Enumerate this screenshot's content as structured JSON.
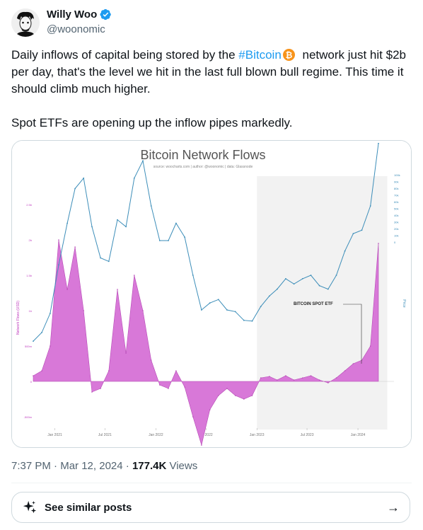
{
  "author": {
    "name": "Willy Woo",
    "handle": "@woonomic",
    "verified": true
  },
  "tweet": {
    "text_before": "Daily inflows of capital being stored by the ",
    "hashtag": "#Bitcoin",
    "emoji": "bitcoin-coin-emoji",
    "text_after": " network just hit $2b per day, that's the level we hit in the last full blown bull regime. This time it should climb much higher.",
    "paragraph2": "Spot ETFs are opening up the inflow pipes markedly."
  },
  "meta": {
    "time": "7:37 PM",
    "sep1": " · ",
    "date": "Mar 12, 2024",
    "sep2": " · ",
    "views_count": "177.4K",
    "views_label": " Views"
  },
  "similar": {
    "label": "See similar posts",
    "icon": "sparkle-icon",
    "arrow": "→"
  },
  "colors": {
    "accent": "#1d9bf0",
    "price_line": "#3d8eb9",
    "flow_fill": "#d878d8",
    "flow_stroke": "#b64bb6",
    "shade": "#f2f2f2"
  },
  "chart_data": {
    "type": "area",
    "title": "Bitcoin Network Flows",
    "subtitle": "source: woocharts.com | author: @woonomic | data: Glassnode",
    "ylabel_left": "Network Flows (USD)",
    "ylabel_right": "Price",
    "x_ticks": [
      "Jan 2021",
      "Jul 2021",
      "Jan 2022",
      "Jul 2022",
      "Jan 2023",
      "Jul 2023",
      "Jan 2024"
    ],
    "y_left_ticks": [
      "2.5b",
      "2b",
      "1.5b",
      "1b",
      "500m",
      "0",
      "-500m"
    ],
    "y_right_ticks": [
      "100k",
      "90k",
      "80k",
      "70k",
      "60k",
      "50k",
      "40k",
      "30k",
      "20k",
      "10k",
      "0"
    ],
    "shaded_range": [
      "Jan 2023",
      "Mar 2024"
    ],
    "annotations": [
      "BITCOIN SPOT ETF"
    ],
    "series": [
      {
        "name": "Price",
        "x": [
          "2020-10",
          "2020-11",
          "2020-12",
          "2021-01",
          "2021-02",
          "2021-03",
          "2021-04",
          "2021-05",
          "2021-06",
          "2021-07",
          "2021-08",
          "2021-09",
          "2021-10",
          "2021-11",
          "2021-12",
          "2022-01",
          "2022-02",
          "2022-03",
          "2022-04",
          "2022-05",
          "2022-06",
          "2022-07",
          "2022-08",
          "2022-09",
          "2022-10",
          "2022-11",
          "2022-12",
          "2023-01",
          "2023-02",
          "2023-03",
          "2023-04",
          "2023-05",
          "2023-06",
          "2023-07",
          "2023-08",
          "2023-09",
          "2023-10",
          "2023-11",
          "2023-12",
          "2024-01",
          "2024-02",
          "2024-03"
        ],
        "values": [
          11000,
          13500,
          19000,
          33000,
          45000,
          55000,
          58000,
          44000,
          35000,
          34000,
          46000,
          44000,
          58000,
          63000,
          50000,
          40000,
          40000,
          45000,
          41000,
          30000,
          20000,
          22000,
          23000,
          20000,
          19500,
          17000,
          16800,
          21000,
          24000,
          26000,
          29000,
          27500,
          29000,
          30000,
          27000,
          26000,
          30000,
          37000,
          42000,
          43000,
          50000,
          68000
        ]
      },
      {
        "name": "Network Flows",
        "x": [
          "2020-10",
          "2020-11",
          "2020-12",
          "2021-01",
          "2021-02",
          "2021-03",
          "2021-04",
          "2021-05",
          "2021-06",
          "2021-07",
          "2021-08",
          "2021-09",
          "2021-10",
          "2021-11",
          "2021-12",
          "2022-01",
          "2022-02",
          "2022-03",
          "2022-04",
          "2022-05",
          "2022-06",
          "2022-07",
          "2022-08",
          "2022-09",
          "2022-10",
          "2022-11",
          "2022-12",
          "2023-01",
          "2023-02",
          "2023-03",
          "2023-04",
          "2023-05",
          "2023-06",
          "2023-07",
          "2023-08",
          "2023-09",
          "2023-10",
          "2023-11",
          "2023-12",
          "2024-01",
          "2024-02",
          "2024-03"
        ],
        "values": [
          80000000,
          150000000,
          500000000,
          2000000000,
          1300000000,
          1900000000,
          1000000000,
          -150000000,
          -100000000,
          150000000,
          1300000000,
          400000000,
          1500000000,
          1000000000,
          300000000,
          -50000000,
          -100000000,
          150000000,
          -80000000,
          -500000000,
          -900000000,
          -400000000,
          -200000000,
          -100000000,
          -200000000,
          -250000000,
          -200000000,
          50000000,
          70000000,
          20000000,
          80000000,
          20000000,
          50000000,
          80000000,
          20000000,
          -20000000,
          50000000,
          150000000,
          250000000,
          300000000,
          500000000,
          1950000000
        ]
      }
    ]
  }
}
